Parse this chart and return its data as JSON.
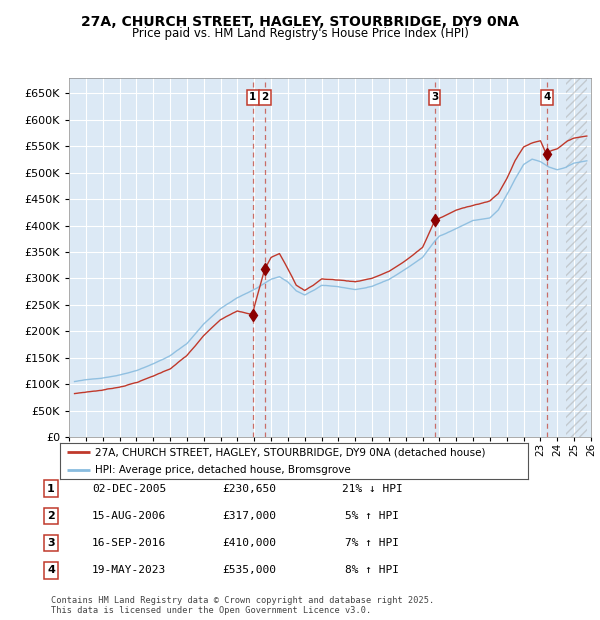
{
  "title": "27A, CHURCH STREET, HAGLEY, STOURBRIDGE, DY9 0NA",
  "subtitle": "Price paid vs. HM Land Registry's House Price Index (HPI)",
  "ylim": [
    0,
    680000
  ],
  "yticks": [
    0,
    50000,
    100000,
    150000,
    200000,
    250000,
    300000,
    350000,
    400000,
    450000,
    500000,
    550000,
    600000,
    650000
  ],
  "background_color": "#ffffff",
  "plot_bg_color": "#dce9f5",
  "grid_color": "#ffffff",
  "transactions": [
    {
      "num": 1,
      "date": "02-DEC-2005",
      "price": 230650,
      "pct": "21%",
      "dir": "↓",
      "x_year": 2005.92
    },
    {
      "num": 2,
      "date": "15-AUG-2006",
      "price": 317000,
      "pct": "5%",
      "dir": "↑",
      "x_year": 2006.62
    },
    {
      "num": 3,
      "date": "16-SEP-2016",
      "price": 410000,
      "pct": "7%",
      "dir": "↑",
      "x_year": 2016.71
    },
    {
      "num": 4,
      "date": "19-MAY-2023",
      "price": 535000,
      "pct": "8%",
      "dir": "↑",
      "x_year": 2023.38
    }
  ],
  "legend_label_red": "27A, CHURCH STREET, HAGLEY, STOURBRIDGE, DY9 0NA (detached house)",
  "legend_label_blue": "HPI: Average price, detached house, Bromsgrove",
  "footer": "Contains HM Land Registry data © Crown copyright and database right 2025.\nThis data is licensed under the Open Government Licence v3.0.",
  "hpi_color": "#89bcdf",
  "price_color": "#c0392b",
  "marker_color": "#8b0000",
  "xmin": 1995.33,
  "xmax": 2025.75,
  "hatch_xstart": 2024.5
}
